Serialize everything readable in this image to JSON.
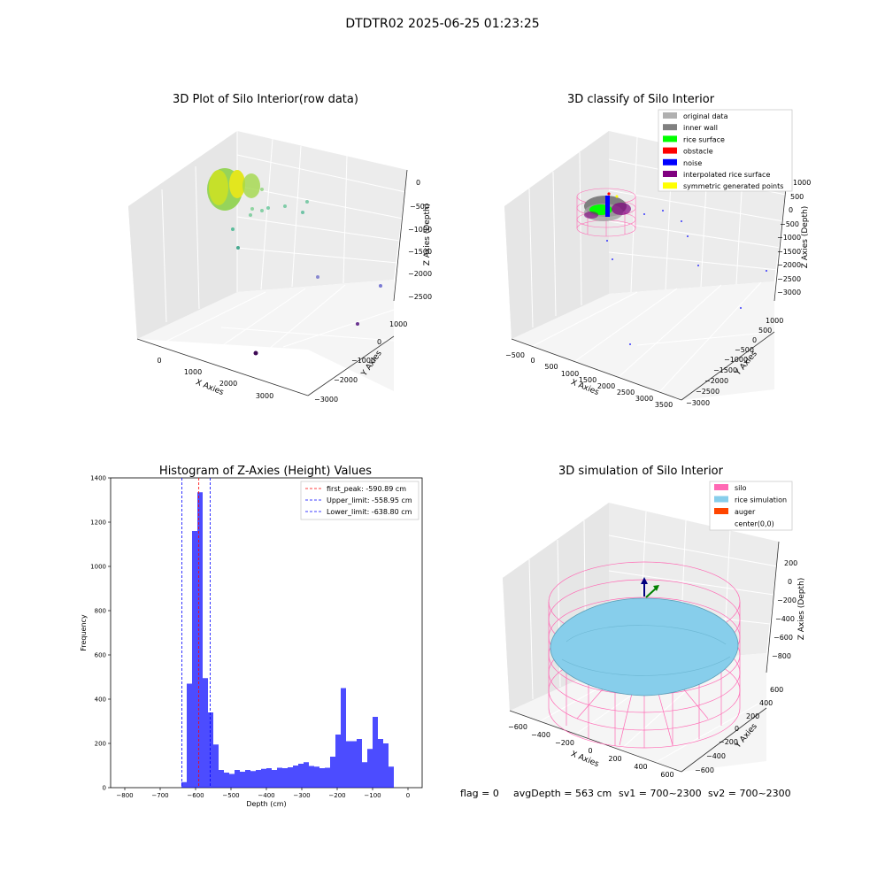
{
  "suptitle": "DTDTR02 2025-06-25 01:23:25",
  "footer": {
    "flag": "flag = 0",
    "avg": "avgDepth = 563 cm",
    "sv1": "sv1 = 700~2300",
    "sv2": "sv2 = 700~2300"
  },
  "panels": {
    "raw": {
      "title": "3D Plot of Silo Interior(row data)",
      "xlabel": "X Axies",
      "ylabel": "Y Axies",
      "zlabel": "Z Axies (Depth)",
      "xticks": [
        "0",
        "1000",
        "2000",
        "3000"
      ],
      "yticks": [
        "1000",
        "0",
        "−1000",
        "−2000",
        "−3000"
      ],
      "zticks": [
        "0",
        "−500",
        "−1000",
        "−1500",
        "−2000",
        "−2500"
      ]
    },
    "classify": {
      "title": "3D classify of Silo Interior",
      "xlabel": "X Axies",
      "ylabel": "Y Axies",
      "zlabel": "Z Axies (Depth)",
      "xticks": [
        "−500",
        "0",
        "500",
        "1000",
        "1500",
        "2000",
        "2500",
        "3000",
        "3500"
      ],
      "yticks": [
        "1000",
        "500",
        "0",
        "−500",
        "−1000",
        "−1500",
        "−2000",
        "−2500",
        "−3000"
      ],
      "zticks": [
        "1000",
        "500",
        "0",
        "−500",
        "−1000",
        "−1500",
        "−2000",
        "−2500",
        "−3000"
      ],
      "legend": [
        {
          "label": "original data",
          "color": "#b0b0b0"
        },
        {
          "label": "inner wall",
          "color": "#808080"
        },
        {
          "label": "rice surface",
          "color": "#00ff00"
        },
        {
          "label": "obstacle",
          "color": "#ff0000"
        },
        {
          "label": "noise",
          "color": "#0000ff"
        },
        {
          "label": "interpolated rice surface",
          "color": "#800080"
        },
        {
          "label": "symmetric generated points",
          "color": "#ffff00"
        }
      ]
    },
    "simulation": {
      "title": "3D simulation of Silo Interior",
      "xlabel": "X Axies",
      "ylabel": "Y Axies",
      "zlabel": "Z Axies (Depth)",
      "xticks": [
        "−600",
        "−400",
        "−200",
        "0",
        "200",
        "400",
        "600"
      ],
      "yticks": [
        "600",
        "400",
        "200",
        "0",
        "−200",
        "−400",
        "−600"
      ],
      "zticks": [
        "200",
        "0",
        "−200",
        "−400",
        "−600",
        "−800"
      ],
      "legend": [
        {
          "label": "silo",
          "color": "#ff69b4"
        },
        {
          "label": "rice simulation",
          "color": "#87ceeb"
        },
        {
          "label": "auger",
          "color": "#ff4500"
        },
        {
          "label": "center(0,0)",
          "color": ""
        }
      ]
    }
  },
  "chart_data": [
    {
      "type": "bar",
      "title": "Histogram of Z-Axies (Height) Values",
      "xlabel": "Depth (cm)",
      "ylabel": "Frequency",
      "xlim": [
        -840,
        40
      ],
      "ylim": [
        0,
        1400
      ],
      "xticks": [
        -800,
        -700,
        -600,
        -500,
        -400,
        -300,
        -200,
        -100,
        0
      ],
      "yticks": [
        0,
        200,
        400,
        600,
        800,
        1000,
        1200,
        1400
      ],
      "bar_color": "#0000ff",
      "bins": [
        {
          "x0": -640,
          "x1": -625,
          "v": 25
        },
        {
          "x0": -625,
          "x1": -610,
          "v": 470
        },
        {
          "x0": -610,
          "x1": -595,
          "v": 1160
        },
        {
          "x0": -595,
          "x1": -580,
          "v": 1335
        },
        {
          "x0": -580,
          "x1": -565,
          "v": 495
        },
        {
          "x0": -565,
          "x1": -550,
          "v": 340
        },
        {
          "x0": -550,
          "x1": -535,
          "v": 195
        },
        {
          "x0": -535,
          "x1": -520,
          "v": 80
        },
        {
          "x0": -520,
          "x1": -505,
          "v": 68
        },
        {
          "x0": -505,
          "x1": -490,
          "v": 62
        },
        {
          "x0": -490,
          "x1": -475,
          "v": 80
        },
        {
          "x0": -475,
          "x1": -460,
          "v": 72
        },
        {
          "x0": -460,
          "x1": -445,
          "v": 80
        },
        {
          "x0": -445,
          "x1": -430,
          "v": 75
        },
        {
          "x0": -430,
          "x1": -415,
          "v": 80
        },
        {
          "x0": -415,
          "x1": -400,
          "v": 85
        },
        {
          "x0": -400,
          "x1": -385,
          "v": 88
        },
        {
          "x0": -385,
          "x1": -370,
          "v": 80
        },
        {
          "x0": -370,
          "x1": -355,
          "v": 90
        },
        {
          "x0": -355,
          "x1": -340,
          "v": 88
        },
        {
          "x0": -340,
          "x1": -325,
          "v": 92
        },
        {
          "x0": -325,
          "x1": -310,
          "v": 100
        },
        {
          "x0": -310,
          "x1": -295,
          "v": 108
        },
        {
          "x0": -295,
          "x1": -280,
          "v": 115
        },
        {
          "x0": -280,
          "x1": -265,
          "v": 98
        },
        {
          "x0": -265,
          "x1": -250,
          "v": 95
        },
        {
          "x0": -250,
          "x1": -235,
          "v": 88
        },
        {
          "x0": -235,
          "x1": -220,
          "v": 90
        },
        {
          "x0": -220,
          "x1": -205,
          "v": 140
        },
        {
          "x0": -205,
          "x1": -190,
          "v": 240
        },
        {
          "x0": -190,
          "x1": -175,
          "v": 450
        },
        {
          "x0": -175,
          "x1": -160,
          "v": 210
        },
        {
          "x0": -160,
          "x1": -145,
          "v": 210
        },
        {
          "x0": -145,
          "x1": -130,
          "v": 220
        },
        {
          "x0": -130,
          "x1": -115,
          "v": 115
        },
        {
          "x0": -115,
          "x1": -100,
          "v": 175
        },
        {
          "x0": -100,
          "x1": -85,
          "v": 320
        },
        {
          "x0": -85,
          "x1": -70,
          "v": 220
        },
        {
          "x0": -70,
          "x1": -55,
          "v": 200
        },
        {
          "x0": -55,
          "x1": -40,
          "v": 95
        }
      ],
      "vlines": [
        {
          "x": -590.89,
          "label": "first_peak: -590.89 cm",
          "color": "#ff0000"
        },
        {
          "x": -558.95,
          "label": "Upper_limit: -558.95 cm",
          "color": "#0000ff"
        },
        {
          "x": -638.8,
          "label": "Lower_limit: -638.80 cm",
          "color": "#0000ff"
        }
      ],
      "legend_position": "top-right"
    }
  ]
}
